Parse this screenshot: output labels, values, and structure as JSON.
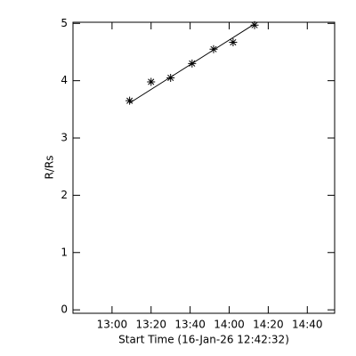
{
  "chart_data": {
    "type": "scatter",
    "xlabel": "Start Time (16-Jan-26 12:42:32)",
    "ylabel": "R/Rs",
    "x": [
      789,
      800,
      810,
      821,
      832,
      842,
      853
    ],
    "values": [
      3.65,
      3.98,
      4.05,
      4.3,
      4.55,
      4.67,
      4.97
    ],
    "fit": {
      "x": [
        789,
        853
      ],
      "values": [
        3.61,
        4.99
      ]
    },
    "color": "#000000",
    "xlim": [
      760,
      894
    ],
    "ylim": [
      -0.06,
      5.02
    ],
    "xticks": [
      {
        "value": 780,
        "label": "13:00"
      },
      {
        "value": 800,
        "label": "13:20"
      },
      {
        "value": 820,
        "label": "13:40"
      },
      {
        "value": 840,
        "label": "14:00"
      },
      {
        "value": 860,
        "label": "14:20"
      },
      {
        "value": 880,
        "label": "14:40"
      }
    ],
    "yticks": [
      0,
      1,
      2,
      3,
      4,
      5
    ]
  }
}
